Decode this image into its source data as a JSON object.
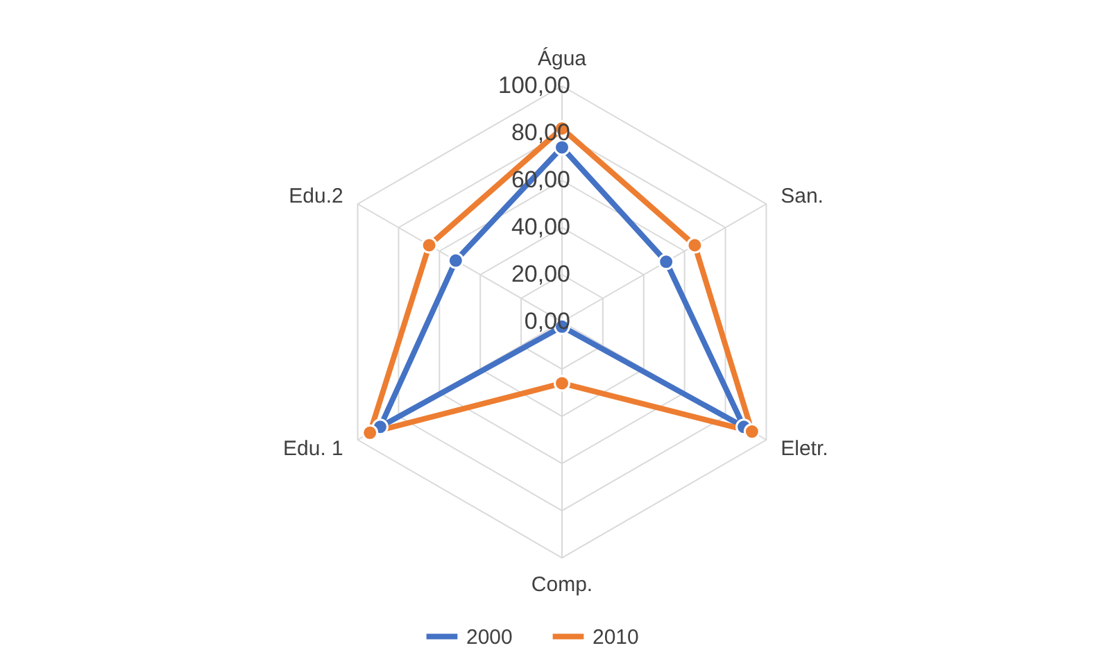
{
  "chart_data": {
    "type": "radar",
    "categories": [
      "Água",
      "San.",
      "Eletr.",
      "Comp.",
      "Edu. 1",
      "Edu.2"
    ],
    "series": [
      {
        "name": "2000",
        "color": "#4472c4",
        "values": [
          74,
          51,
          89,
          2,
          89,
          52
        ]
      },
      {
        "name": "2010",
        "color": "#ed7d31",
        "values": [
          82,
          65,
          93,
          26,
          94,
          65
        ]
      }
    ],
    "ylim": [
      0,
      100
    ],
    "yticks": [
      {
        "value": 0,
        "label": "0,00"
      },
      {
        "value": 20,
        "label": "20,00"
      },
      {
        "value": 40,
        "label": "40,00"
      },
      {
        "value": 60,
        "label": "60,00"
      },
      {
        "value": 80,
        "label": "80,00"
      },
      {
        "value": 100,
        "label": "100,00"
      }
    ],
    "grid": true,
    "legend": "bottom",
    "marker": "circle"
  }
}
